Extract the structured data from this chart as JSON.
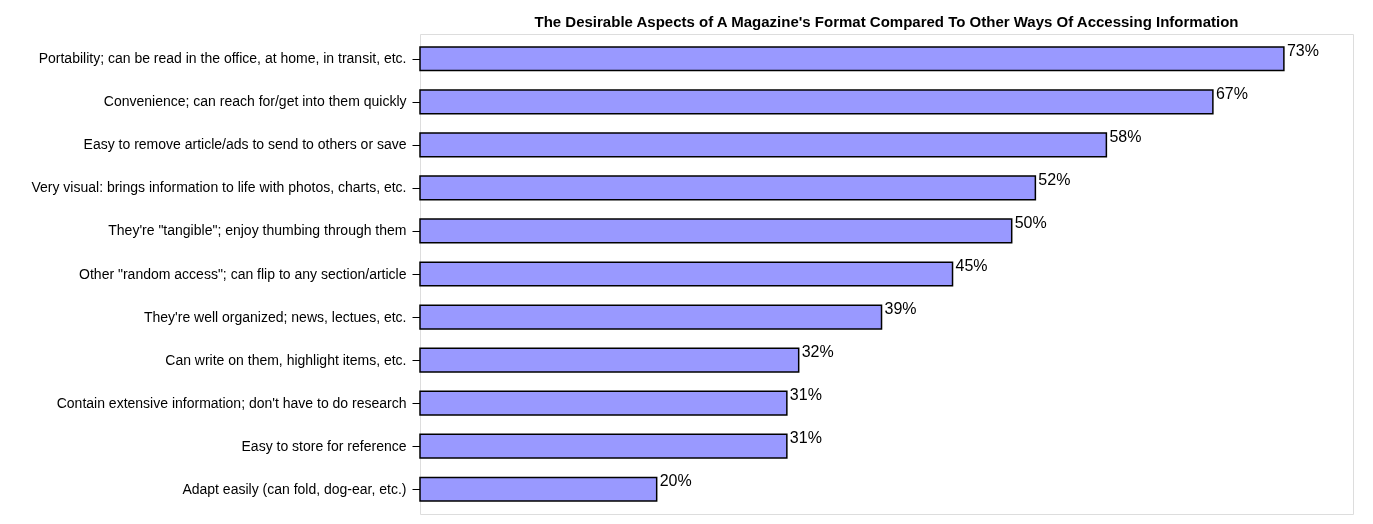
{
  "chart_data": {
    "type": "bar",
    "orientation": "horizontal",
    "title": "The Desirable Aspects of A Magazine's Format Compared To Other Ways Of Accessing Information",
    "categories": [
      "Portability; can be read in the office, at home, in transit, etc.",
      "Convenience; can reach for/get into them quickly",
      "Easy to remove article/ads to send to others or save",
      "Very visual: brings information to life with photos, charts, etc.",
      "They're \"tangible\"; enjoy thumbing through them",
      "Other \"random access\"; can flip to any section/article",
      "They're well organized; news, lectues, etc.",
      "Can write on them, highlight items, etc.",
      "Contain extensive information; don't have to do research",
      "Easy to store for reference",
      "Adapt easily (can fold, dog-ear, etc.)"
    ],
    "values": [
      73,
      67,
      58,
      52,
      50,
      45,
      39,
      32,
      31,
      31,
      20
    ],
    "value_labels": [
      "73%",
      "67%",
      "58%",
      "52%",
      "50%",
      "45%",
      "39%",
      "32%",
      "31%",
      "31%",
      "20%"
    ],
    "color": "#9999ff"
  }
}
